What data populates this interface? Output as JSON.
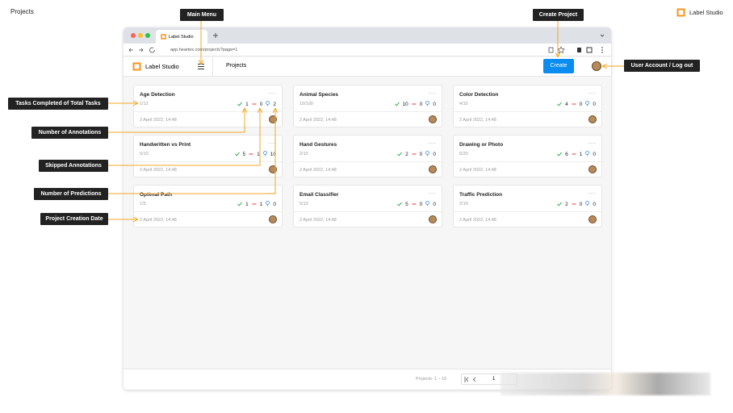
{
  "page": {
    "title": "Projects",
    "brand": "Label Studio"
  },
  "browser": {
    "tab": "Label Studio",
    "url": "app.heartex.com/projects?page=1"
  },
  "app_header": {
    "brand": "Label Studio",
    "section": "Projects",
    "create_button": "Create"
  },
  "callouts": [
    {
      "label": "Main Menu"
    },
    {
      "label": "Create Project"
    },
    {
      "label": "User Account / Log out"
    },
    {
      "label": "Tasks Completed of Total Tasks"
    },
    {
      "label": "Number of Annotations"
    },
    {
      "label": "Skipped Annotations"
    },
    {
      "label": "Number of Predictions"
    },
    {
      "label": "Project Creation Date"
    }
  ],
  "projects": [
    {
      "title": "Age Detection",
      "tasks": "1/12",
      "completed": 1,
      "skipped": 0,
      "predictions": 2,
      "created": "2 April 2022, 14:48"
    },
    {
      "title": "Animal Species",
      "tasks": "10/100",
      "completed": 10,
      "skipped": 0,
      "predictions": 0,
      "created": "2 April 2022, 14:48"
    },
    {
      "title": "Color Detection",
      "tasks": "4/10",
      "completed": 4,
      "skipped": 0,
      "predictions": 0,
      "created": "2 April 2022, 14:48"
    },
    {
      "title": "Handwritten vs Print",
      "tasks": "5/10",
      "completed": 5,
      "skipped": 1,
      "predictions": 10,
      "created": "2 April 2022, 14:48"
    },
    {
      "title": "Hand Gestures",
      "tasks": "2/10",
      "completed": 2,
      "skipped": 0,
      "predictions": 0,
      "created": "2 April 2022, 14:48"
    },
    {
      "title": "Drawing or Photo",
      "tasks": "6/20",
      "completed": 6,
      "skipped": 1,
      "predictions": 0,
      "created": "2 April 2022, 14:48"
    },
    {
      "title": "Optimal Path",
      "tasks": "1/5",
      "completed": 1,
      "skipped": 1,
      "predictions": 0,
      "created": "2 April 2022, 14:48"
    },
    {
      "title": "Email Classifier",
      "tasks": "5/10",
      "completed": 5,
      "skipped": 0,
      "predictions": 0,
      "created": "2 April 2022, 14:48"
    },
    {
      "title": "Traffic Prediction",
      "tasks": "2/10",
      "completed": 2,
      "skipped": 0,
      "predictions": 0,
      "created": "2 April 2022, 14:48"
    }
  ],
  "footer": {
    "range": "Projects: 1 – 15",
    "page": 1
  }
}
